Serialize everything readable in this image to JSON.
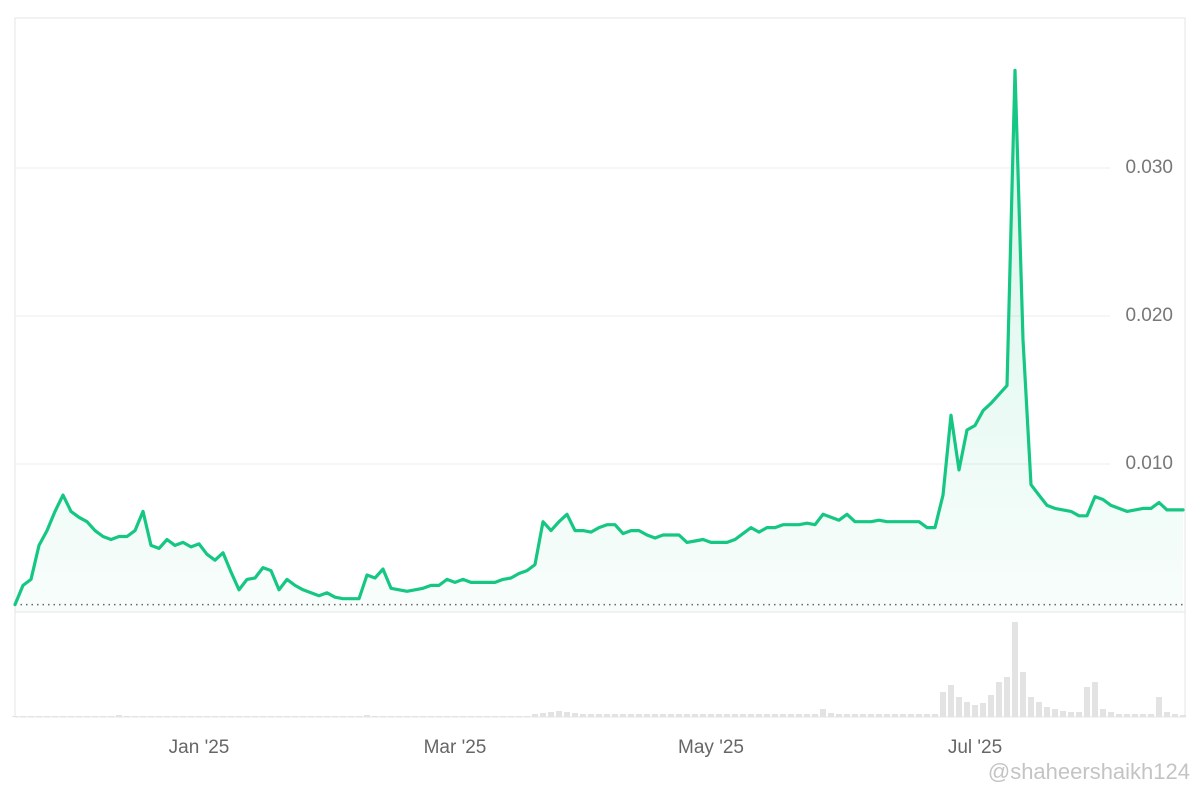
{
  "chart_data": {
    "type": "line",
    "categories": [
      null,
      null,
      null,
      null,
      null,
      null,
      null,
      null,
      null,
      null,
      null,
      null,
      null,
      null,
      null,
      null,
      null,
      null,
      null,
      null,
      null,
      null,
      null,
      "Jan '25",
      null,
      null,
      null,
      null,
      null,
      null,
      null,
      null,
      null,
      null,
      null,
      null,
      null,
      null,
      null,
      null,
      null,
      null,
      null,
      null,
      null,
      null,
      null,
      null,
      null,
      null,
      null,
      null,
      null,
      null,
      null,
      "Mar '25",
      null,
      null,
      null,
      null,
      null,
      null,
      null,
      null,
      null,
      null,
      null,
      null,
      null,
      null,
      null,
      null,
      null,
      null,
      null,
      null,
      null,
      null,
      null,
      null,
      null,
      null,
      null,
      null,
      null,
      null,
      null,
      "May '25",
      null,
      null,
      null,
      null,
      null,
      null,
      null,
      null,
      null,
      null,
      null,
      null,
      null,
      null,
      null,
      null,
      null,
      null,
      null,
      null,
      null,
      null,
      null,
      null,
      null,
      null,
      null,
      null,
      null,
      null,
      null,
      null,
      "Jul '25",
      null,
      null,
      null,
      null,
      null,
      null,
      null,
      null,
      null,
      null,
      null,
      null,
      null,
      null,
      null,
      null,
      null,
      null,
      null,
      null,
      null,
      null,
      null,
      null,
      null,
      null
    ],
    "series": [
      {
        "color": "#16c784",
        "values": [
          0.0005,
          0.0018,
          0.0022,
          0.0045,
          0.0055,
          0.0068,
          0.0079,
          0.0068,
          0.0064,
          0.0061,
          0.0055,
          0.0051,
          0.0049,
          0.0051,
          0.0051,
          0.0055,
          0.0068,
          0.0045,
          0.0043,
          0.0049,
          0.0045,
          0.0047,
          0.0044,
          0.0046,
          0.0039,
          0.0035,
          0.004,
          0.0027,
          0.0015,
          0.0022,
          0.0023,
          0.003,
          0.0028,
          0.0015,
          0.0022,
          0.0018,
          0.0015,
          0.0013,
          0.0011,
          0.0013,
          0.001,
          0.0009,
          0.0009,
          0.0009,
          0.0025,
          0.0023,
          0.0029,
          0.0016,
          0.0015,
          0.0014,
          0.0015,
          0.0016,
          0.0018,
          0.0018,
          0.0022,
          0.002,
          0.0022,
          0.002,
          0.002,
          0.002,
          0.002,
          0.0022,
          0.0023,
          0.0026,
          0.0028,
          0.0032,
          0.0061,
          0.0055,
          0.0061,
          0.0066,
          0.0055,
          0.0055,
          0.0054,
          0.0057,
          0.0059,
          0.0059,
          0.0053,
          0.0055,
          0.0055,
          0.0052,
          0.005,
          0.0052,
          0.0052,
          0.0052,
          0.0047,
          0.0048,
          0.0049,
          0.0047,
          0.0047,
          0.0047,
          0.0049,
          0.0053,
          0.0057,
          0.0054,
          0.0057,
          0.0057,
          0.0059,
          0.0059,
          0.0059,
          0.006,
          0.0059,
          0.0066,
          0.0064,
          0.0062,
          0.0066,
          0.0061,
          0.0061,
          0.0061,
          0.0062,
          0.0061,
          0.0061,
          0.0061,
          0.0061,
          0.0061,
          0.0057,
          0.0057,
          0.0079,
          0.0133,
          0.0096,
          0.0123,
          0.0126,
          0.0136,
          0.0141,
          0.0147,
          0.0153,
          0.0366,
          0.0184,
          0.0086,
          0.0079,
          0.0072,
          0.007,
          0.0069,
          0.0068,
          0.0065,
          0.0065,
          0.0078,
          0.0076,
          0.0072,
          0.007,
          0.0068,
          0.0069,
          0.007,
          0.007,
          0.0074,
          0.0069,
          0.0069,
          0.0069
        ]
      }
    ],
    "volume": {
      "color": "#e3e3e3",
      "values": [
        1,
        1,
        1,
        1,
        1,
        1,
        1,
        1,
        1,
        1,
        1,
        1,
        1,
        2,
        1,
        1,
        1,
        1,
        1,
        1,
        1,
        1,
        1,
        1,
        1,
        1,
        1,
        1,
        1,
        1,
        1,
        1,
        1,
        1,
        1,
        1,
        1,
        1,
        1,
        1,
        1,
        1,
        1,
        1,
        2,
        1,
        1,
        1,
        1,
        1,
        1,
        1,
        1,
        1,
        1,
        1,
        1,
        1,
        1,
        1,
        1,
        1,
        1,
        1,
        1,
        3,
        4,
        5,
        6,
        5,
        4,
        3,
        3,
        3,
        3,
        3,
        3,
        3,
        3,
        3,
        3,
        3,
        3,
        3,
        3,
        3,
        3,
        3,
        3,
        3,
        3,
        3,
        3,
        3,
        3,
        3,
        3,
        3,
        3,
        3,
        3,
        8,
        4,
        3,
        3,
        3,
        3,
        3,
        3,
        3,
        3,
        3,
        3,
        3,
        3,
        3,
        25,
        32,
        20,
        15,
        12,
        14,
        22,
        35,
        40,
        95,
        45,
        20,
        15,
        10,
        8,
        6,
        5,
        5,
        30,
        35,
        8,
        5,
        3,
        3,
        3,
        3,
        3,
        20,
        5,
        3,
        2
      ],
      "lim": [
        0,
        100
      ]
    },
    "ylim": [
      0,
      0.04
    ],
    "yticks": [
      {
        "value": 0.01,
        "label": "0.010"
      },
      {
        "value": 0.02,
        "label": "0.020"
      },
      {
        "value": 0.03,
        "label": "0.030"
      }
    ],
    "grid": true,
    "baseline": 0.0005,
    "watermark": "@shaheershaikh124"
  }
}
